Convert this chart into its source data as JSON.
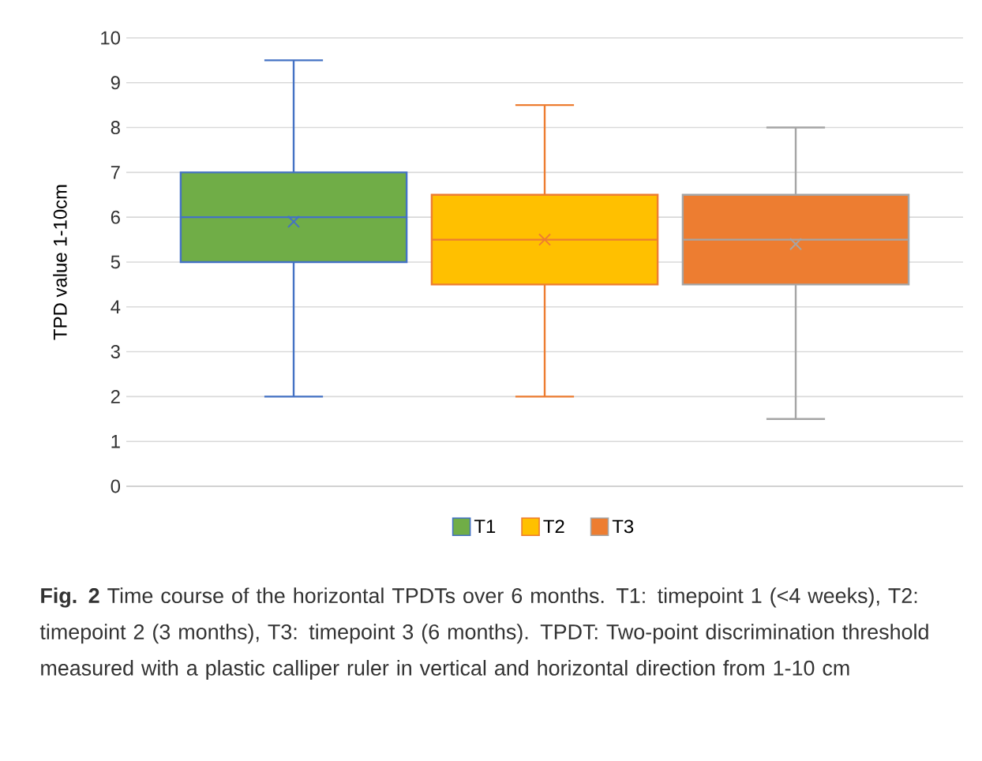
{
  "chart_data": {
    "type": "box",
    "categories": [
      null
    ],
    "ylabel": "TPD value 1-10cm",
    "ylim": [
      0,
      10
    ],
    "yticks": [
      0,
      1,
      2,
      3,
      4,
      5,
      6,
      7,
      8,
      9,
      10
    ],
    "grid": "y",
    "legend": "bottom",
    "tick_labels": "y",
    "marker": "cross",
    "series": [
      {
        "name": "T1",
        "color": "#70ad47",
        "boxes": [
          {
            "low": 2,
            "q1": 5,
            "median": 6,
            "q3": 7,
            "high": 9.5,
            "mean": 5.9
          }
        ]
      },
      {
        "name": "T2",
        "color": "#ffc000",
        "boxes": [
          {
            "low": 2,
            "q1": 4.5,
            "median": 5.5,
            "q3": 6.5,
            "high": 8.5,
            "mean": 5.5
          }
        ]
      },
      {
        "name": "T3",
        "color": "#ed7d31",
        "boxes": [
          {
            "low": 1.5,
            "q1": 4.5,
            "median": 5.5,
            "q3": 6.5,
            "high": 8,
            "mean": 5.4
          }
        ]
      }
    ],
    "annotations": [
      "**Fig. 2**  Time course of the horizontal TPDTs over 6 months. T1: timepoint 1 (<4 weeks), T2: timepoint 2 (3 months), T3: timepoint 3 (6 months). TPDT: Two-point discrimination threshold measured with a plastic calliper ruler in vertical and horizontal direction from 1-10 cm"
    ]
  }
}
